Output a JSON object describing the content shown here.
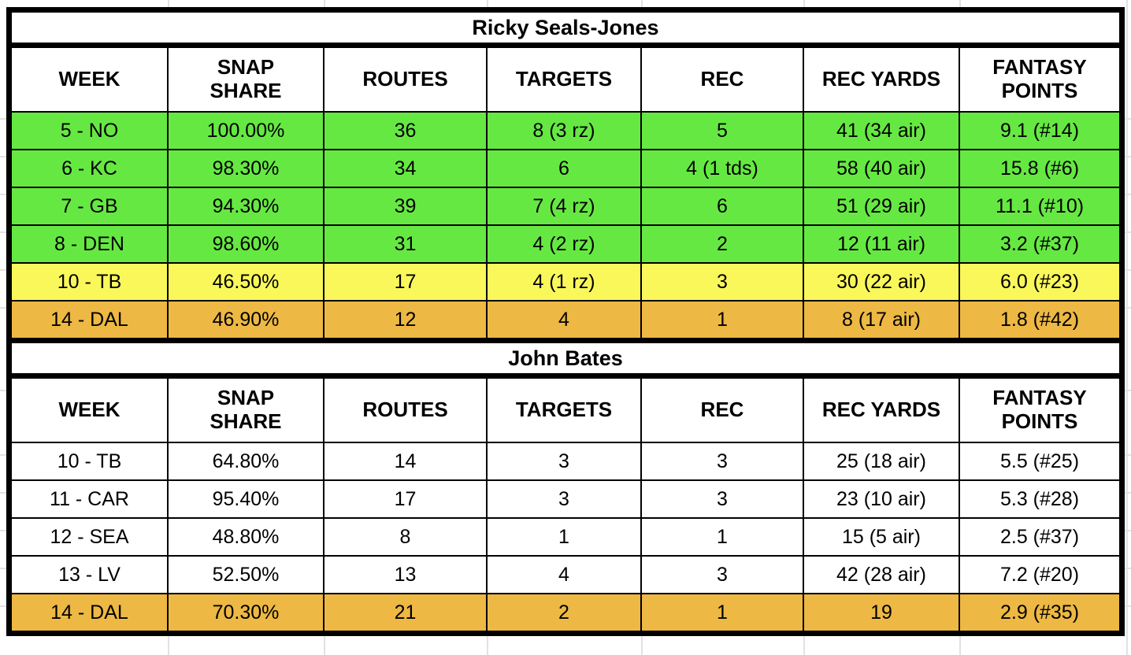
{
  "colors": {
    "highlight_green": "#66E843",
    "highlight_yellow": "#FAF75B",
    "highlight_orange": "#EDB843",
    "row_default": "#FFFFFF",
    "table_border": "#000000",
    "gridline": "#E2E2E2",
    "text": "#000000"
  },
  "columns": [
    {
      "key": "week",
      "label": "WEEK"
    },
    {
      "key": "snap-share",
      "label": "SNAP\nSHARE"
    },
    {
      "key": "routes",
      "label": "ROUTES"
    },
    {
      "key": "targets",
      "label": "TARGETS"
    },
    {
      "key": "rec",
      "label": "REC"
    },
    {
      "key": "rec-yards",
      "label": "REC YARDS"
    },
    {
      "key": "fantasy-points",
      "label": "FANTASY\nPOINTS"
    }
  ],
  "tables": [
    {
      "title": "Ricky Seals-Jones",
      "rows": [
        {
          "highlight": "green",
          "cells": [
            "5 - NO",
            "100.00%",
            "36",
            "8 (3 rz)",
            "5",
            "41 (34 air)",
            "9.1 (#14)"
          ]
        },
        {
          "highlight": "green",
          "cells": [
            "6 - KC",
            "98.30%",
            "34",
            "6",
            "4 (1 tds)",
            "58 (40 air)",
            "15.8 (#6)"
          ]
        },
        {
          "highlight": "green",
          "cells": [
            "7 - GB",
            "94.30%",
            "39",
            "7 (4 rz)",
            "6",
            "51 (29 air)",
            "11.1 (#10)"
          ]
        },
        {
          "highlight": "green",
          "cells": [
            "8 - DEN",
            "98.60%",
            "31",
            "4 (2 rz)",
            "2",
            "12 (11 air)",
            "3.2 (#37)"
          ]
        },
        {
          "highlight": "yellow",
          "cells": [
            "10 - TB",
            "46.50%",
            "17",
            "4 (1 rz)",
            "3",
            "30 (22 air)",
            "6.0 (#23)"
          ]
        },
        {
          "highlight": "orange",
          "cells": [
            "14 - DAL",
            "46.90%",
            "12",
            "4",
            "1",
            "8 (17 air)",
            "1.8 (#42)"
          ]
        }
      ]
    },
    {
      "title": "John Bates",
      "rows": [
        {
          "highlight": "none",
          "cells": [
            "10 - TB",
            "64.80%",
            "14",
            "3",
            "3",
            "25 (18 air)",
            "5.5 (#25)"
          ]
        },
        {
          "highlight": "none",
          "cells": [
            "11 - CAR",
            "95.40%",
            "17",
            "3",
            "3",
            "23 (10 air)",
            "5.3 (#28)"
          ]
        },
        {
          "highlight": "none",
          "cells": [
            "12 - SEA",
            "48.80%",
            "8",
            "1",
            "1",
            "15 (5 air)",
            "2.5 (#37)"
          ]
        },
        {
          "highlight": "none",
          "cells": [
            "13 - LV",
            "52.50%",
            "13",
            "4",
            "3",
            "42 (28 air)",
            "7.2 (#20)"
          ]
        },
        {
          "highlight": "orange",
          "cells": [
            "14 - DAL",
            "70.30%",
            "21",
            "2",
            "1",
            "19",
            "2.9 (#35)"
          ]
        }
      ]
    }
  ]
}
